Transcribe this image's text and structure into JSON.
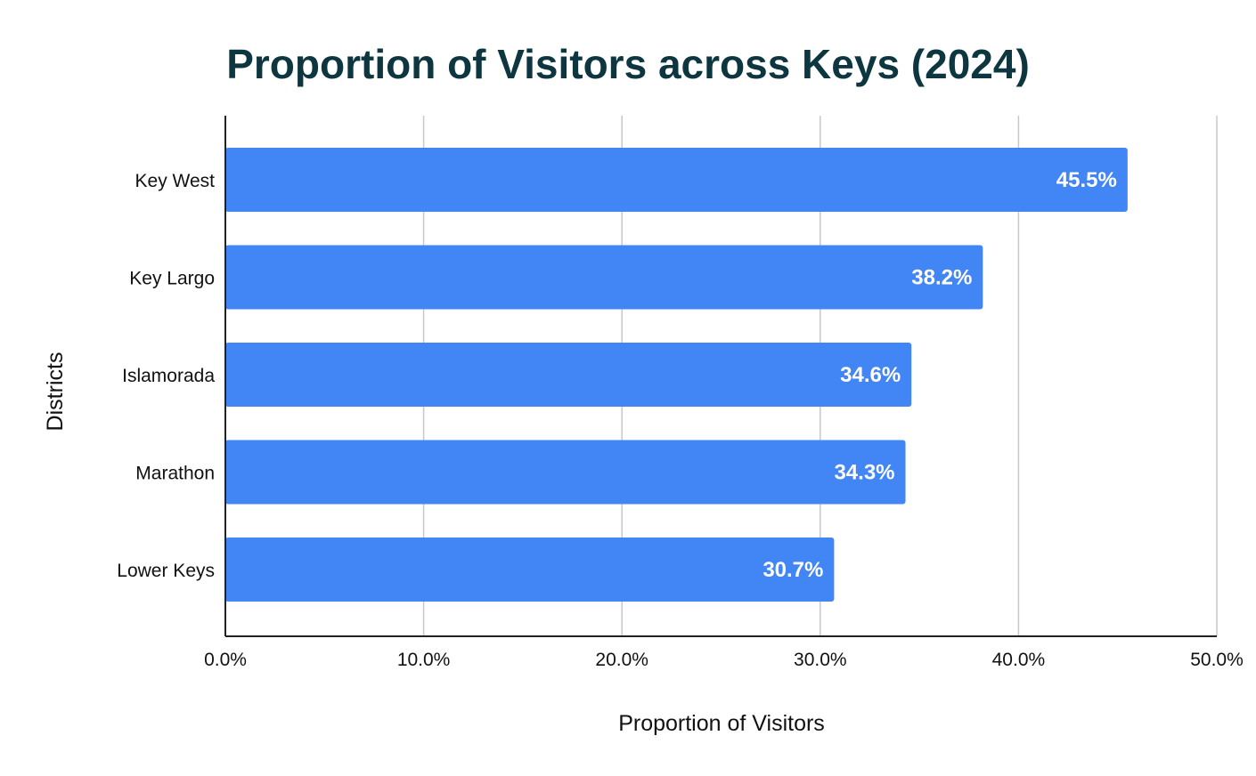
{
  "chart_data": {
    "type": "bar",
    "orientation": "horizontal",
    "title": "Proportion of Visitors across Keys (2024)",
    "xlabel": "Proportion of Visitors",
    "ylabel": "Districts",
    "categories": [
      "Key West",
      "Key Largo",
      "Islamorada",
      "Marathon",
      "Lower Keys"
    ],
    "values": [
      45.5,
      38.2,
      34.6,
      34.3,
      30.7
    ],
    "data_labels": [
      "45.5%",
      "38.2%",
      "34.6%",
      "34.3%",
      "30.7%"
    ],
    "xlim": [
      0,
      50
    ],
    "x_ticks": [
      0,
      10,
      20,
      30,
      40,
      50
    ],
    "x_tick_labels": [
      "0.0%",
      "10.0%",
      "20.0%",
      "30.0%",
      "40.0%",
      "50.0%"
    ],
    "grid": "vertical",
    "legend": "none",
    "bar_color": "#4285f4",
    "title_color": "#0d3640"
  }
}
